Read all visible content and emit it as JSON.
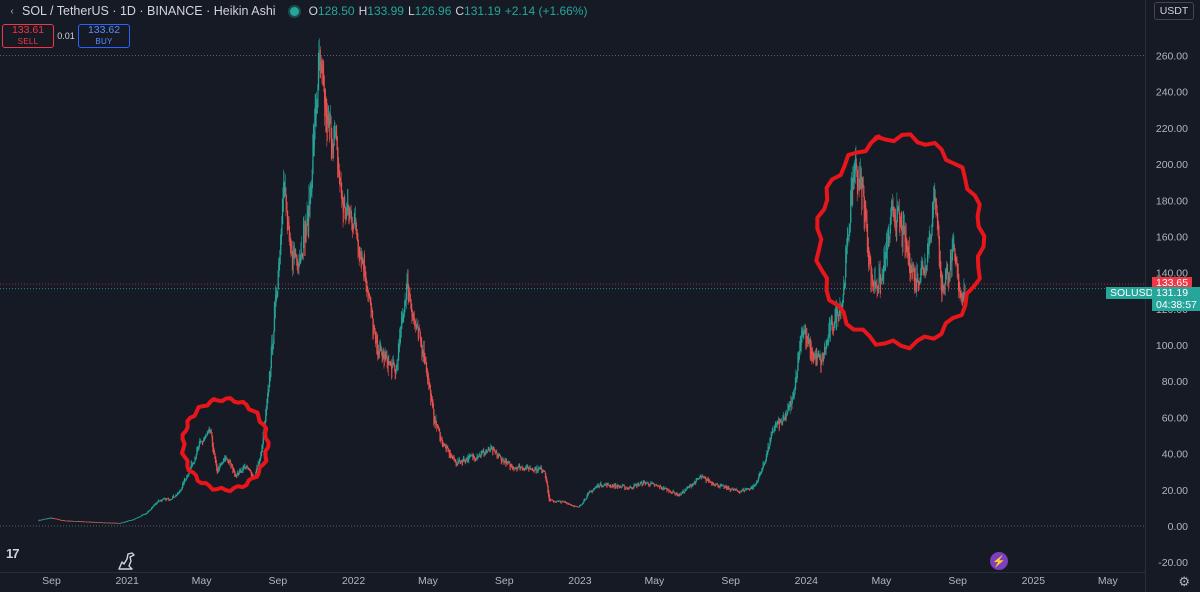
{
  "header": {
    "symbol_title": "SOL / TetherUS · 1D · BINANCE · Heikin Ashi",
    "ohlc": {
      "o_label": "O",
      "o_value": "128.50",
      "h_label": "H",
      "h_value": "133.99",
      "l_label": "L",
      "l_value": "126.96",
      "c_label": "C",
      "c_value": "131.19",
      "change": "+2.14 (+1.66%)"
    },
    "currency": "USDT"
  },
  "trade": {
    "sell_price": "133.61",
    "sell_label": "SELL",
    "spread": "0.01",
    "buy_price": "133.62",
    "buy_label": "BUY"
  },
  "price_tags": {
    "ask": "133.65",
    "symbol": "SOLUSDT",
    "last": "131.19",
    "countdown": "04:38:57"
  },
  "colors": {
    "background": "#161a25",
    "up": "#26a69a",
    "down": "#ef5350",
    "grid": "#1f2430",
    "annotation": "#e8161b"
  },
  "icons": [
    "collapse-arrow-icon",
    "tradingview-logo-icon",
    "dino-icon",
    "lightning-icon",
    "gear-icon"
  ],
  "chart_data": {
    "type": "candlestick",
    "style": "Heikin Ashi",
    "symbol": "SOLUSDT",
    "interval": "1D",
    "ylim": [
      -20,
      265
    ],
    "y_ticks": [
      "-20.00",
      "0.00",
      "20.00",
      "40.00",
      "60.00",
      "80.00",
      "100.00",
      "120.00",
      "140.00",
      "160.00",
      "180.00",
      "200.00",
      "220.00",
      "240.00",
      "260.00"
    ],
    "x_ticks": [
      "Sep",
      "2021",
      "May",
      "Sep",
      "2022",
      "May",
      "Sep",
      "2023",
      "May",
      "Sep",
      "2024",
      "May",
      "Sep",
      "2025",
      "May"
    ],
    "x_tick_dates": [
      "2020-09-01",
      "2021-01-01",
      "2021-05-01",
      "2021-09-01",
      "2022-01-01",
      "2022-05-01",
      "2022-09-01",
      "2023-01-01",
      "2023-05-01",
      "2023-09-01",
      "2024-01-01",
      "2024-05-01",
      "2024-09-01",
      "2025-01-01",
      "2025-05-01"
    ],
    "x_range": [
      "2020-06-10",
      "2025-06-30"
    ],
    "grid": false,
    "price_path": [
      [
        "2020-08-11",
        3.2
      ],
      [
        "2020-08-30",
        4.5
      ],
      [
        "2020-09-20",
        3.0
      ],
      [
        "2020-10-20",
        2.5
      ],
      [
        "2020-11-20",
        2.0
      ],
      [
        "2020-12-20",
        1.6
      ],
      [
        "2021-01-10",
        3.5
      ],
      [
        "2021-02-01",
        7
      ],
      [
        "2021-02-20",
        14
      ],
      [
        "2021-03-10",
        15
      ],
      [
        "2021-03-25",
        18
      ],
      [
        "2021-04-10",
        30
      ],
      [
        "2021-04-28",
        45
      ],
      [
        "2021-05-15",
        52
      ],
      [
        "2021-05-25",
        30
      ],
      [
        "2021-06-10",
        38
      ],
      [
        "2021-06-25",
        28
      ],
      [
        "2021-07-10",
        33
      ],
      [
        "2021-07-25",
        27
      ],
      [
        "2021-08-05",
        40
      ],
      [
        "2021-08-15",
        70
      ],
      [
        "2021-08-25",
        110
      ],
      [
        "2021-09-05",
        160
      ],
      [
        "2021-09-09",
        195
      ],
      [
        "2021-09-20",
        150
      ],
      [
        "2021-10-05",
        150
      ],
      [
        "2021-10-20",
        170
      ],
      [
        "2021-11-06",
        255
      ],
      [
        "2021-11-20",
        220
      ],
      [
        "2021-12-01",
        215
      ],
      [
        "2021-12-15",
        175
      ],
      [
        "2022-01-01",
        170
      ],
      [
        "2022-01-20",
        140
      ],
      [
        "2022-02-05",
        100
      ],
      [
        "2022-02-25",
        90
      ],
      [
        "2022-03-10",
        85
      ],
      [
        "2022-03-28",
        135
      ],
      [
        "2022-04-10",
        110
      ],
      [
        "2022-04-25",
        95
      ],
      [
        "2022-05-10",
        60
      ],
      [
        "2022-05-25",
        45
      ],
      [
        "2022-06-15",
        35
      ],
      [
        "2022-07-10",
        38
      ],
      [
        "2022-08-10",
        42
      ],
      [
        "2022-09-10",
        33
      ],
      [
        "2022-10-10",
        32
      ],
      [
        "2022-11-05",
        31
      ],
      [
        "2022-11-12",
        14
      ],
      [
        "2022-12-10",
        13
      ],
      [
        "2022-12-29",
        10
      ],
      [
        "2023-01-15",
        18
      ],
      [
        "2023-02-01",
        23
      ],
      [
        "2023-03-01",
        22
      ],
      [
        "2023-03-20",
        21
      ],
      [
        "2023-04-15",
        24
      ],
      [
        "2023-05-15",
        21
      ],
      [
        "2023-06-10",
        17
      ],
      [
        "2023-07-14",
        27
      ],
      [
        "2023-08-15",
        22
      ],
      [
        "2023-09-15",
        19
      ],
      [
        "2023-10-10",
        22
      ],
      [
        "2023-10-25",
        35
      ],
      [
        "2023-11-10",
        55
      ],
      [
        "2023-11-25",
        58
      ],
      [
        "2023-12-10",
        70
      ],
      [
        "2023-12-25",
        110
      ],
      [
        "2024-01-10",
        95
      ],
      [
        "2024-01-25",
        90
      ],
      [
        "2024-02-10",
        110
      ],
      [
        "2024-02-28",
        125
      ],
      [
        "2024-03-18",
        200
      ],
      [
        "2024-04-01",
        185
      ],
      [
        "2024-04-15",
        135
      ],
      [
        "2024-05-01",
        135
      ],
      [
        "2024-05-20",
        175
      ],
      [
        "2024-06-01",
        165
      ],
      [
        "2024-06-25",
        135
      ],
      [
        "2024-07-10",
        145
      ],
      [
        "2024-07-28",
        185
      ],
      [
        "2024-08-05",
        130
      ],
      [
        "2024-08-25",
        150
      ],
      [
        "2024-09-06",
        128
      ],
      [
        "2024-09-13",
        131.19
      ]
    ],
    "last_price": 131.19,
    "ask_price": 133.65
  },
  "annotations": [
    {
      "type": "freehand-circle",
      "label": "",
      "range": [
        "2021-04-01",
        "2021-08-15"
      ],
      "price": [
        20,
        70
      ]
    },
    {
      "type": "freehand-circle",
      "label": "",
      "range": [
        "2024-01-20",
        "2024-10-10"
      ],
      "price": [
        100,
        215
      ]
    }
  ]
}
